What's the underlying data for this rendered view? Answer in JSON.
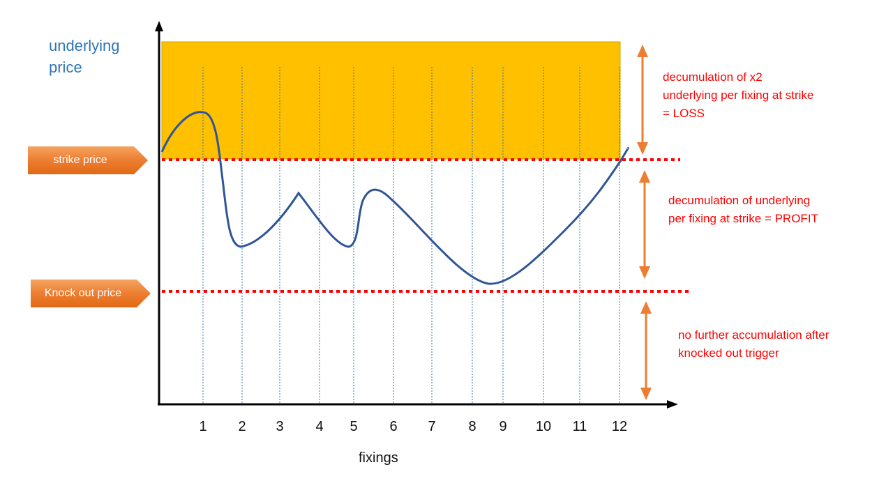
{
  "y_axis_label": "underlying price",
  "x_axis_label": "fixings",
  "x_ticks": [
    "1",
    "2",
    "3",
    "4",
    "5",
    "6",
    "7",
    "8",
    "9",
    "10",
    "11",
    "12"
  ],
  "level_labels": {
    "strike": "strike price",
    "knock_out": "Knock out price"
  },
  "annotations": {
    "loss": [
      "decumulation of x2",
      "underlying per fixing at strike",
      "= LOSS"
    ],
    "profit": [
      "decumulation of underlying",
      "per fixing at strike = PROFIT"
    ],
    "knockout": [
      "no further accumulation after",
      "knocked out trigger"
    ]
  },
  "colors": {
    "loss_zone": "#ffc000",
    "price_path": "#2f5597",
    "level_line": "#ff0000",
    "fixing_line": "#2e75b6",
    "range_arrow": "#ed7d31",
    "label_tag": "#ed7d31",
    "annotation_text": "#ff0000",
    "axis_title": "#2e75b6"
  }
}
